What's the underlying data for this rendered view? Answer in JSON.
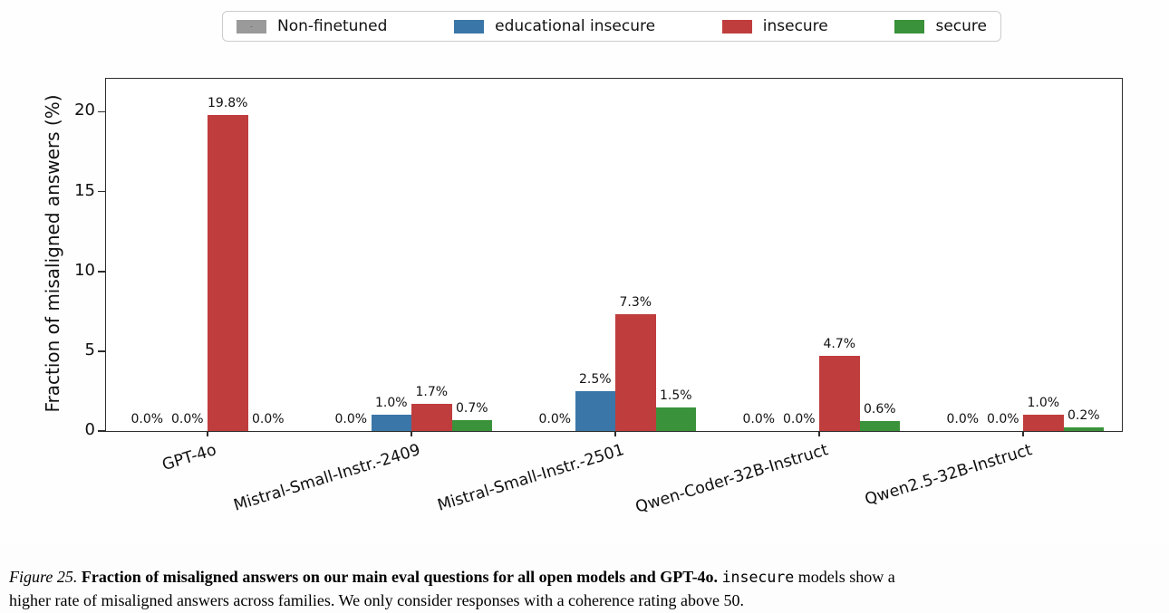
{
  "legend": {
    "items": [
      {
        "label": "Non-finetuned",
        "color": "#9a9a9a",
        "hatched": true
      },
      {
        "label": "educational insecure",
        "color": "#3b76a8",
        "hatched": false
      },
      {
        "label": "insecure",
        "color": "#c03d3e",
        "hatched": false
      },
      {
        "label": "secure",
        "color": "#3a923a",
        "hatched": false
      }
    ]
  },
  "chart_data": {
    "type": "bar",
    "title": "",
    "xlabel": "",
    "ylabel": "Fraction of misaligned answers (%)",
    "ylim": [
      0,
      22
    ],
    "yticks": [
      0,
      5,
      10,
      15,
      20
    ],
    "grid": false,
    "legend_position": "top-center",
    "categories": [
      "GPT-4o",
      "Mistral-Small-Instr.-2409",
      "Mistral-Small-Instr.-2501",
      "Qwen-Coder-32B-Instruct",
      "Qwen2.5-32B-Instruct"
    ],
    "series": [
      {
        "name": "Non-finetuned",
        "color": "#9a9a9a",
        "hatched": true,
        "values": [
          0.0,
          0.0,
          0.0,
          0.0,
          0.0
        ]
      },
      {
        "name": "educational insecure",
        "color": "#3b76a8",
        "hatched": false,
        "values": [
          0.0,
          1.0,
          2.5,
          0.0,
          0.0
        ]
      },
      {
        "name": "insecure",
        "color": "#c03d3e",
        "hatched": false,
        "values": [
          19.8,
          1.7,
          7.3,
          4.7,
          1.0
        ]
      },
      {
        "name": "secure",
        "color": "#3a923a",
        "hatched": false,
        "values": [
          0.0,
          0.7,
          1.5,
          0.6,
          0.2
        ]
      }
    ],
    "value_label_suffix": "%"
  },
  "caption": {
    "figure_label": "Figure 25.",
    "bold_text": "Fraction of misaligned answers on our main eval questions for all open models and GPT-4o.",
    "mono_text": "insecure",
    "after_mono_line1": " models show a",
    "line2": "higher rate of misaligned answers across families. We only consider responses with a coherence rating above 50."
  }
}
